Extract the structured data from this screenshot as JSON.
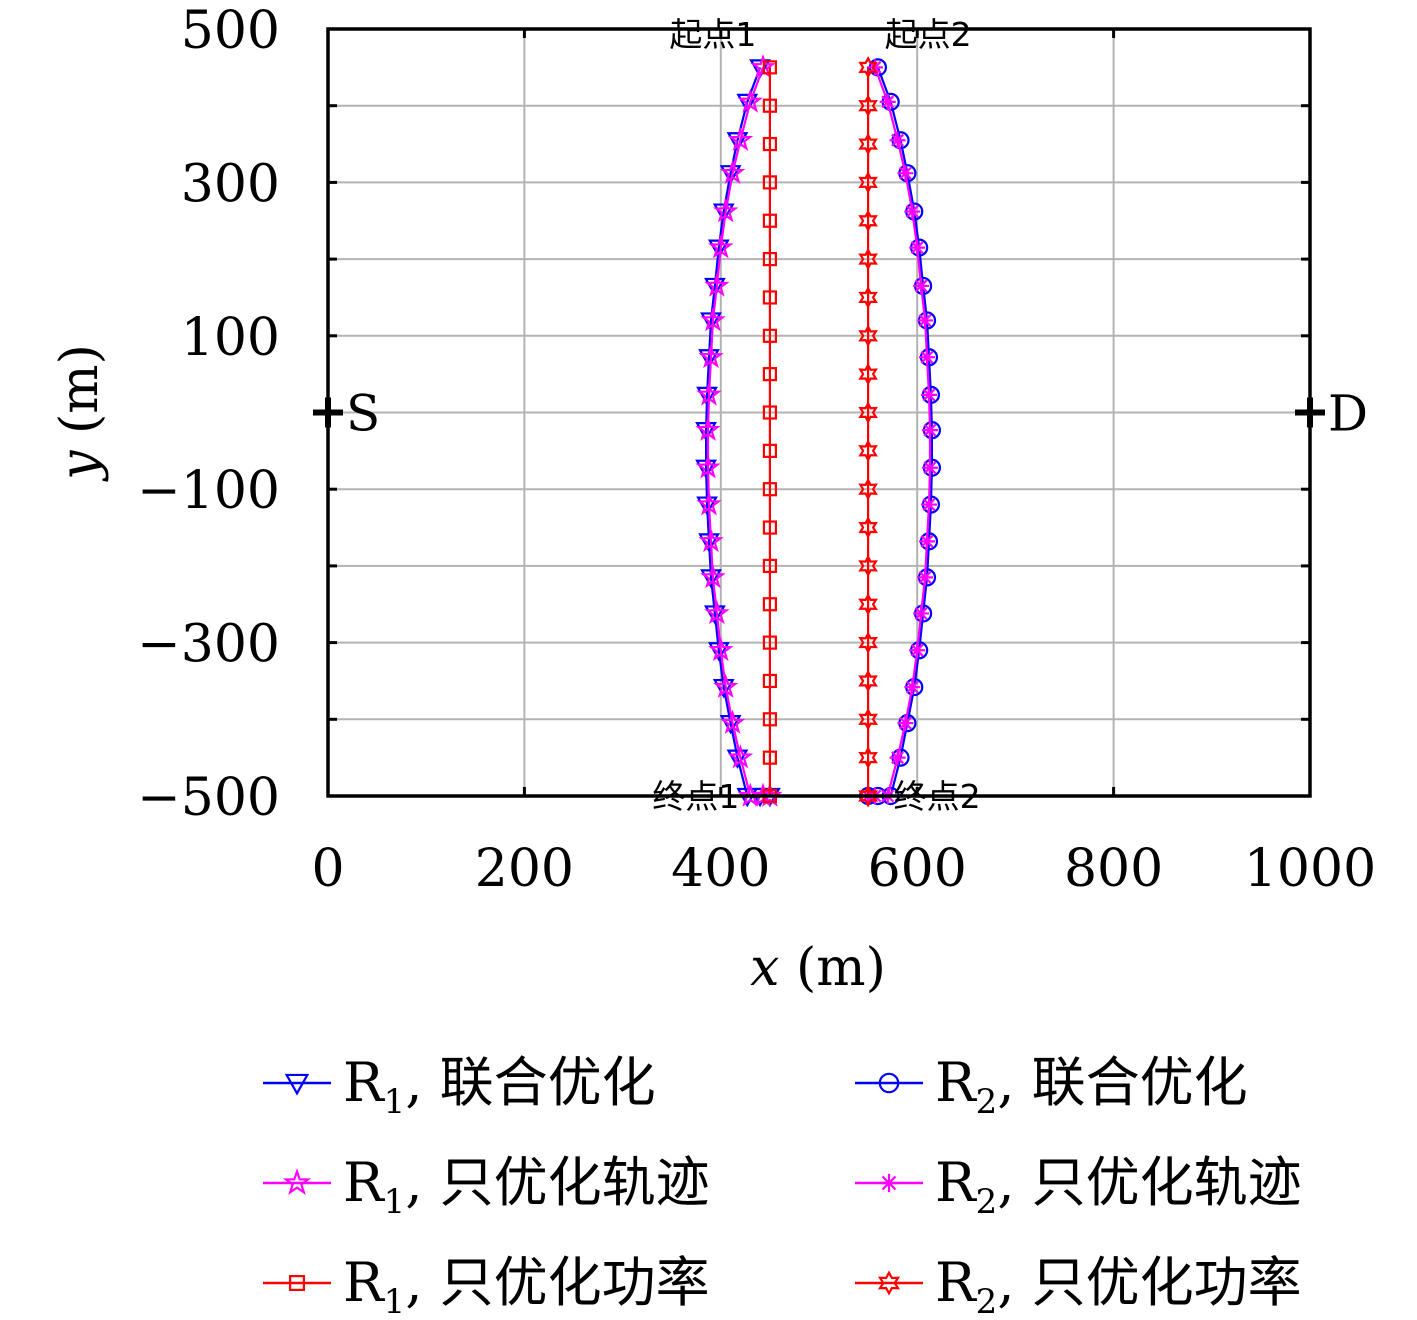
{
  "chart_data": {
    "type": "line",
    "xlabel_var": "x",
    "xlabel_unit": "(m)",
    "ylabel_var": "y",
    "ylabel_unit": "(m)",
    "xlim": [
      0,
      1000
    ],
    "ylim": [
      -500,
      500
    ],
    "xticks": [
      0,
      200,
      400,
      600,
      800,
      1000
    ],
    "yticks": [
      500,
      300,
      100,
      -100,
      -300,
      -500
    ],
    "ytick_labels": [
      "500",
      "300",
      "100",
      "−100",
      "−300",
      "−500"
    ],
    "xgrid": [
      200,
      400,
      600,
      800
    ],
    "ygrid": [
      400,
      300,
      200,
      100,
      0,
      -100,
      -200,
      -300,
      -400
    ],
    "grid": true,
    "legend_position": "bottom",
    "legend_sep": ", ",
    "nodes": [
      {
        "label": "S",
        "x": 0,
        "y": 0
      },
      {
        "label": "D",
        "x": 1000,
        "y": 0
      }
    ],
    "annotations": [
      {
        "text": "起点1",
        "x": 450,
        "y": 500
      },
      {
        "text": "起点2",
        "x": 550,
        "y": 500
      },
      {
        "text": "终点1",
        "x": 450,
        "y": -500
      },
      {
        "text": "终点2",
        "x": 550,
        "y": -500
      }
    ],
    "series": [
      {
        "name_base": "R",
        "name_sub": "1",
        "name_rest": "联合优化",
        "color": "#0000ff",
        "marker": "triangle-down",
        "x": [
          440,
          427,
          417,
          410,
          403,
          398,
          394,
          390,
          388,
          386,
          385,
          385,
          386,
          388,
          390,
          394,
          398,
          403,
          410,
          417,
          427,
          440,
          450
        ],
        "y": [
          450,
          405,
          355,
          312,
          262,
          215,
          165,
          120,
          72,
          23,
          -23,
          -72,
          -120,
          -168,
          -215,
          -262,
          -310,
          -358,
          -405,
          -450,
          -500,
          -500,
          -500
        ]
      },
      {
        "name_base": "R",
        "name_sub": "2",
        "name_rest": "联合优化",
        "color": "#0000ff",
        "marker": "circle",
        "x": [
          560,
          573,
          583,
          590,
          597,
          602,
          606,
          610,
          612,
          614,
          615,
          615,
          614,
          612,
          610,
          606,
          602,
          597,
          590,
          583,
          573,
          560,
          550
        ],
        "y": [
          450,
          405,
          355,
          312,
          262,
          215,
          165,
          120,
          72,
          23,
          -23,
          -72,
          -120,
          -168,
          -215,
          -262,
          -310,
          -358,
          -405,
          -450,
          -500,
          -500,
          -500
        ]
      },
      {
        "name_base": "R",
        "name_sub": "1",
        "name_rest": "只优化轨迹",
        "color": "#ff00ff",
        "marker": "star",
        "x": [
          443,
          430,
          420,
          412,
          405,
          400,
          396,
          392,
          390,
          388,
          387,
          387,
          388,
          390,
          392,
          396,
          400,
          405,
          412,
          420,
          430,
          443,
          450
        ],
        "y": [
          450,
          405,
          355,
          312,
          262,
          215,
          165,
          120,
          72,
          23,
          -23,
          -72,
          -120,
          -168,
          -215,
          -262,
          -310,
          -358,
          -405,
          -450,
          -500,
          -500,
          -500
        ]
      },
      {
        "name_base": "R",
        "name_sub": "2",
        "name_rest": "只优化轨迹",
        "color": "#ff00ff",
        "marker": "asterisk",
        "x": [
          557,
          570,
          580,
          588,
          595,
          600,
          604,
          608,
          610,
          612,
          613,
          613,
          612,
          610,
          608,
          604,
          600,
          595,
          588,
          580,
          570,
          557,
          550
        ],
        "y": [
          450,
          405,
          355,
          312,
          262,
          215,
          165,
          120,
          72,
          23,
          -23,
          -72,
          -120,
          -168,
          -215,
          -262,
          -310,
          -358,
          -405,
          -450,
          -500,
          -500,
          -500
        ]
      },
      {
        "name_base": "R",
        "name_sub": "1",
        "name_rest": "只优化功率",
        "color": "#ff0000",
        "marker": "square",
        "x": [
          450,
          450,
          450,
          450,
          450,
          450,
          450,
          450,
          450,
          450,
          450,
          450,
          450,
          450,
          450,
          450,
          450,
          450,
          450,
          450,
          450
        ],
        "y": [
          450,
          400,
          350,
          300,
          250,
          200,
          150,
          100,
          50,
          0,
          -50,
          -100,
          -150,
          -200,
          -250,
          -300,
          -350,
          -400,
          -450,
          -500,
          -500
        ]
      },
      {
        "name_base": "R",
        "name_sub": "2",
        "name_rest": "只优化功率",
        "color": "#ff0000",
        "marker": "hexagram",
        "x": [
          550,
          550,
          550,
          550,
          550,
          550,
          550,
          550,
          550,
          550,
          550,
          550,
          550,
          550,
          550,
          550,
          550,
          550,
          550,
          550,
          550
        ],
        "y": [
          450,
          400,
          350,
          300,
          250,
          200,
          150,
          100,
          50,
          0,
          -50,
          -100,
          -150,
          -200,
          -250,
          -300,
          -350,
          -400,
          -450,
          -500,
          -500
        ]
      }
    ]
  }
}
